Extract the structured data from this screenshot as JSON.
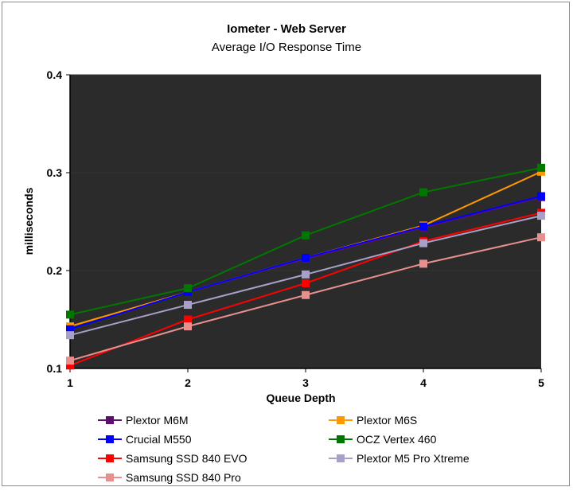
{
  "chart_data": {
    "type": "line",
    "title": "Iometer - Web Server",
    "subtitle": "Average I/O Response Time",
    "xlabel": "Queue Depth",
    "ylabel": "milliseconds",
    "x": [
      1,
      2,
      3,
      4,
      5
    ],
    "xlim": [
      1,
      5
    ],
    "ylim": [
      0.1,
      0.4
    ],
    "yticks": [
      "0.1",
      "0.2",
      "0.3",
      "0.4"
    ],
    "xticks": [
      "1",
      "2",
      "3",
      "4",
      "5"
    ],
    "grid": true,
    "plot_background": "#2b2b2b",
    "legend_position": "bottom",
    "series": [
      {
        "name": "Plextor M6M",
        "color": "#5c0f6e",
        "values": [
          0.14,
          0.178,
          0.212,
          0.244,
          0.275
        ]
      },
      {
        "name": "Plextor M6S",
        "color": "#ff9900",
        "values": [
          0.143,
          0.178,
          0.213,
          0.246,
          0.301
        ]
      },
      {
        "name": "Crucial M550",
        "color": "#0000ff",
        "values": [
          0.14,
          0.178,
          0.213,
          0.245,
          0.276
        ]
      },
      {
        "name": "OCZ Vertex 460",
        "color": "#007800",
        "values": [
          0.155,
          0.182,
          0.236,
          0.28,
          0.305
        ]
      },
      {
        "name": "Samsung SSD 840 EVO",
        "color": "#ff0000",
        "values": [
          0.103,
          0.15,
          0.187,
          0.23,
          0.259
        ]
      },
      {
        "name": "Plextor M5 Pro Xtreme",
        "color": "#a8a0c8",
        "values": [
          0.134,
          0.165,
          0.196,
          0.228,
          0.256
        ]
      },
      {
        "name": "Samsung SSD 840 Pro",
        "color": "#e89090",
        "values": [
          0.108,
          0.143,
          0.175,
          0.207,
          0.234
        ]
      }
    ]
  }
}
